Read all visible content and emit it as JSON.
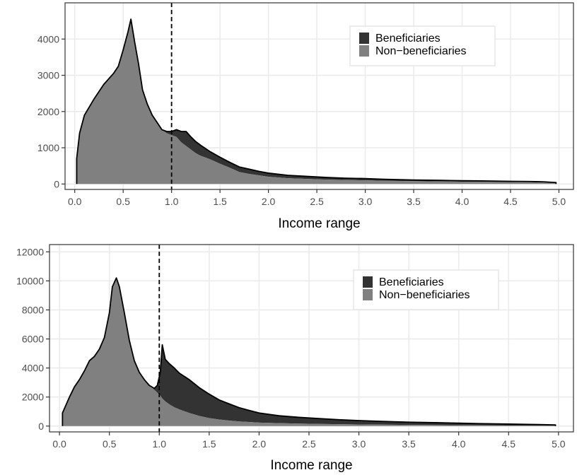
{
  "colors": {
    "beneficiaries": "#333333",
    "non_beneficiaries": "#808080",
    "grid": "#ebebeb",
    "outline": "#000000"
  },
  "chart_data": [
    {
      "type": "area",
      "stacked": true,
      "title": "",
      "xlabel": "Income range",
      "ylabel": "",
      "xlim": [
        -0.1,
        5.15
      ],
      "ylim": [
        -150,
        5000
      ],
      "xticks": [
        0.0,
        0.5,
        1.0,
        1.5,
        2.0,
        2.5,
        3.0,
        3.5,
        4.0,
        4.5,
        5.0
      ],
      "xtick_labels": [
        "0.0",
        "0.5",
        "1.0",
        "1.5",
        "2.0",
        "2.5",
        "3.0",
        "3.5",
        "4.0",
        "4.5",
        "5.0"
      ],
      "yticks": [
        0,
        1000,
        2000,
        3000,
        4000
      ],
      "ytick_labels": [
        "0",
        "1000",
        "2000",
        "3000",
        "4000"
      ],
      "vline_x": 1.0,
      "grid": true,
      "legend": {
        "position": "top-right",
        "entries": [
          "Beneficiaries",
          "Non−beneficiaries"
        ]
      },
      "x": [
        0.02,
        0.05,
        0.1,
        0.2,
        0.3,
        0.4,
        0.45,
        0.5,
        0.55,
        0.58,
        0.62,
        0.66,
        0.7,
        0.75,
        0.8,
        0.85,
        0.9,
        0.95,
        1.0,
        1.05,
        1.1,
        1.15,
        1.2,
        1.25,
        1.3,
        1.35,
        1.4,
        1.5,
        1.6,
        1.7,
        1.8,
        1.9,
        2.0,
        2.2,
        2.4,
        2.6,
        2.8,
        3.0,
        3.2,
        3.5,
        3.8,
        4.0,
        4.2,
        4.5,
        4.7,
        4.85,
        4.97
      ],
      "series": [
        {
          "name": "Non−beneficiaries",
          "values": [
            700,
            1400,
            1900,
            2350,
            2750,
            3050,
            3250,
            3700,
            4200,
            4550,
            3900,
            3300,
            2600,
            2200,
            1900,
            1700,
            1500,
            1400,
            1350,
            1300,
            1150,
            1050,
            950,
            850,
            780,
            730,
            680,
            560,
            450,
            330,
            280,
            240,
            200,
            160,
            140,
            120,
            110,
            100,
            90,
            80,
            70,
            65,
            60,
            55,
            50,
            40,
            30
          ]
        },
        {
          "name": "Beneficiaries",
          "values": [
            0,
            0,
            0,
            0,
            0,
            0,
            0,
            0,
            0,
            0,
            0,
            0,
            0,
            0,
            0,
            0,
            0,
            50,
            100,
            200,
            300,
            400,
            350,
            320,
            290,
            250,
            210,
            180,
            150,
            140,
            130,
            110,
            100,
            80,
            70,
            60,
            50,
            50,
            40,
            30,
            30,
            25,
            25,
            20,
            20,
            20,
            10
          ]
        }
      ]
    },
    {
      "type": "area",
      "stacked": true,
      "title": "",
      "xlabel": "Income range",
      "ylabel": "",
      "xlim": [
        -0.1,
        5.15
      ],
      "ylim": [
        -400,
        12500
      ],
      "xticks": [
        0.0,
        0.5,
        1.0,
        1.5,
        2.0,
        2.5,
        3.0,
        3.5,
        4.0,
        4.5,
        5.0
      ],
      "xtick_labels": [
        "0.0",
        "0.5",
        "1.0",
        "1.5",
        "2.0",
        "2.5",
        "3.0",
        "3.5",
        "4.0",
        "4.5",
        "5.0"
      ],
      "yticks": [
        0,
        2000,
        4000,
        6000,
        8000,
        10000,
        12000
      ],
      "ytick_labels": [
        "0",
        "2000",
        "4000",
        "6000",
        "8000",
        "10000",
        "12000"
      ],
      "vline_x": 1.0,
      "grid": true,
      "legend": {
        "position": "top-right",
        "entries": [
          "Beneficiaries",
          "Non−beneficiaries"
        ]
      },
      "x": [
        0.03,
        0.1,
        0.15,
        0.2,
        0.25,
        0.3,
        0.35,
        0.4,
        0.45,
        0.5,
        0.53,
        0.57,
        0.6,
        0.65,
        0.7,
        0.75,
        0.8,
        0.85,
        0.9,
        0.95,
        0.98,
        1.01,
        1.03,
        1.06,
        1.1,
        1.15,
        1.2,
        1.3,
        1.4,
        1.5,
        1.6,
        1.7,
        1.8,
        1.9,
        2.0,
        2.2,
        2.4,
        2.6,
        2.8,
        3.0,
        3.2,
        3.5,
        3.8,
        4.0,
        4.2,
        4.5,
        4.7,
        4.85,
        4.97
      ],
      "series": [
        {
          "name": "Non−beneficiaries",
          "values": [
            900,
            2000,
            2700,
            3200,
            3800,
            4500,
            4800,
            5300,
            6100,
            7800,
            9600,
            10200,
            9600,
            7800,
            5900,
            4500,
            3700,
            3200,
            2800,
            2500,
            2300,
            2100,
            1900,
            1700,
            1500,
            1300,
            1150,
            900,
            700,
            550,
            450,
            380,
            320,
            280,
            240,
            200,
            170,
            150,
            130,
            110,
            100,
            80,
            70,
            60,
            50,
            40,
            30,
            25,
            20
          ]
        },
        {
          "name": "Beneficiaries",
          "values": [
            0,
            0,
            0,
            0,
            0,
            0,
            0,
            0,
            0,
            0,
            0,
            0,
            0,
            0,
            0,
            0,
            0,
            0,
            0,
            100,
            500,
            1600,
            3700,
            2900,
            2800,
            2700,
            2500,
            2300,
            1950,
            1650,
            1350,
            1150,
            950,
            800,
            660,
            510,
            430,
            370,
            310,
            270,
            230,
            190,
            160,
            140,
            120,
            100,
            85,
            75,
            60
          ]
        }
      ]
    }
  ]
}
